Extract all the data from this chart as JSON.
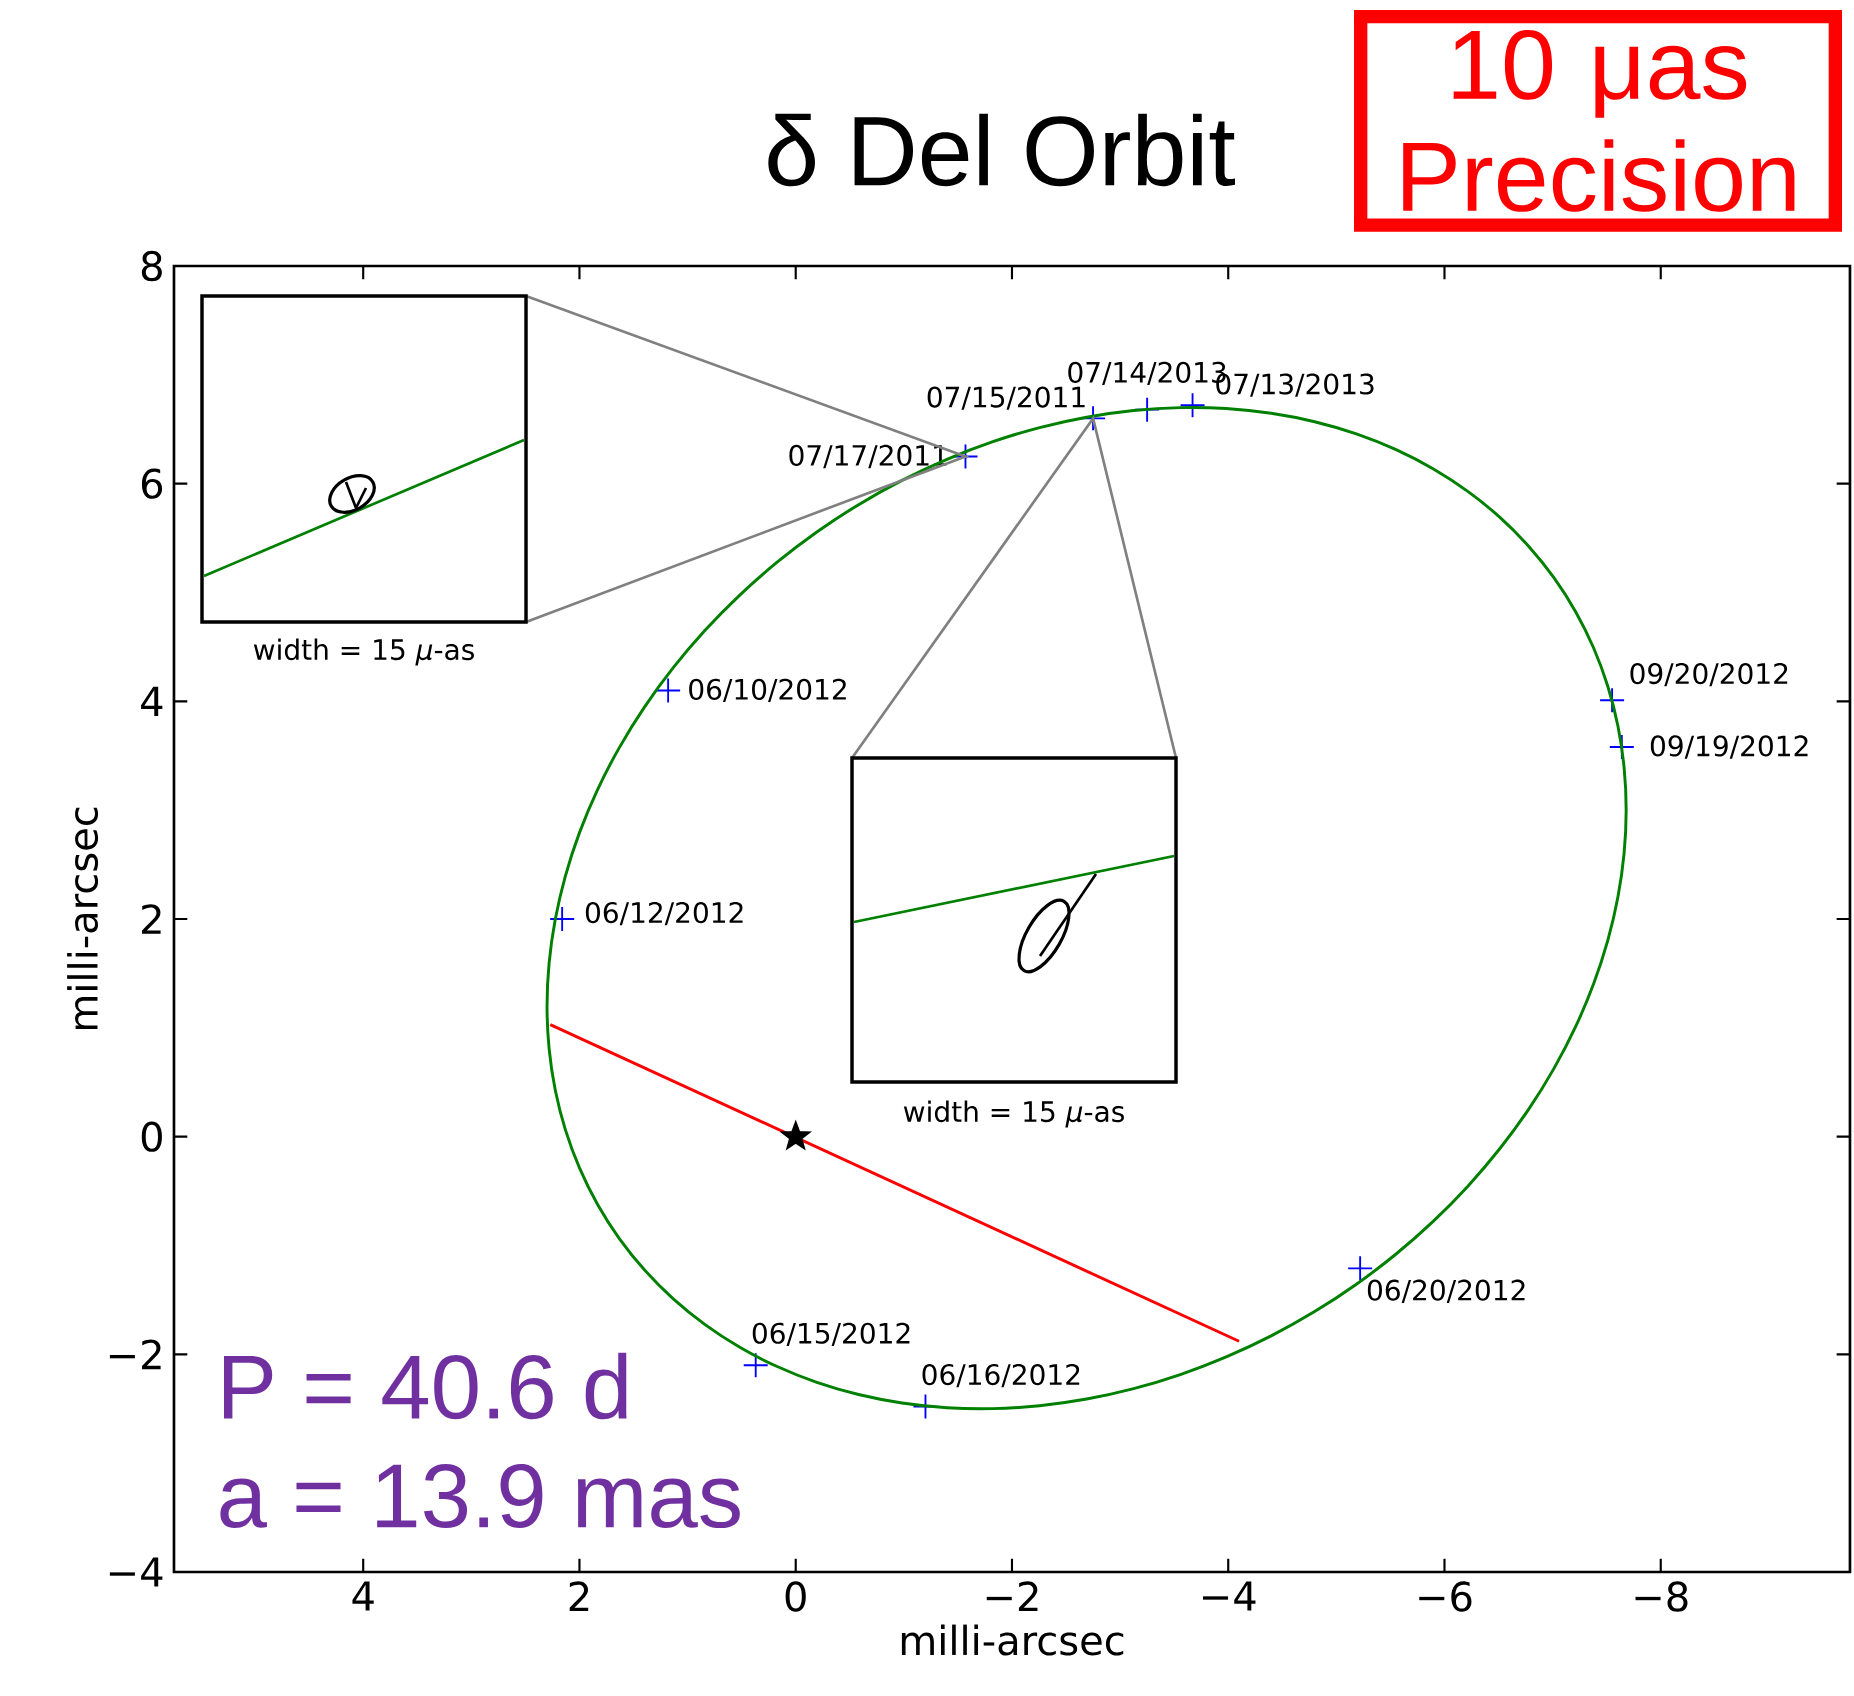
{
  "chart_data": {
    "type": "line",
    "title": "δ Del Orbit",
    "xlabel": "milli-arcsec",
    "ylabel": "milli-arcsec",
    "xlim": [
      5.75,
      -9.75
    ],
    "ylim": [
      -4,
      8
    ],
    "xticks": [
      4,
      2,
      0,
      {
        "value": -2,
        "label": "−2"
      },
      {
        "value": -4,
        "label": "−4"
      },
      {
        "value": -6,
        "label": "−6"
      },
      {
        "value": -8,
        "label": "−8"
      }
    ],
    "yticks": [
      {
        "value": -4,
        "label": "−4"
      },
      {
        "value": -2,
        "label": "−2"
      },
      0,
      2,
      4,
      6,
      8
    ],
    "series": [
      {
        "color": "#ff0000",
        "x": [
          2.27,
          -4.1
        ],
        "values": [
          1.03,
          -1.88
        ]
      },
      {
        "type": "scatter",
        "color": "#0000ff",
        "marker": "cross",
        "x": [
          -1.57,
          -2.75,
          -3.25,
          -3.67,
          1.18,
          2.16,
          0.37,
          -1.2,
          -5.22,
          -7.55,
          -7.64
        ],
        "values": [
          6.25,
          6.6,
          6.68,
          6.72,
          4.1,
          2.0,
          -2.1,
          -2.48,
          -1.21,
          4.01,
          3.58
        ]
      },
      {
        "type": "scatter",
        "color": "#000000",
        "marker": "star",
        "x": [
          0
        ],
        "values": [
          0
        ]
      }
    ],
    "annotations": [
      {
        "text": "07/17/2011",
        "x": -1.57,
        "y": 6.25
      },
      {
        "text": "07/15/2011",
        "x": -2.75,
        "y": 6.6
      },
      {
        "text": "07/14/2013",
        "x": -3.25,
        "y": 6.68
      },
      {
        "text": "07/13/2013",
        "x": -3.67,
        "y": 6.72
      },
      {
        "text": "06/10/2012",
        "x": 1.18,
        "y": 4.1
      },
      {
        "text": "06/12/2012",
        "x": 2.16,
        "y": 2.0
      },
      {
        "text": "06/15/2012",
        "x": 0.37,
        "y": -2.1
      },
      {
        "text": "06/16/2012",
        "x": -1.2,
        "y": -2.48
      },
      {
        "text": "06/20/2012",
        "x": -5.22,
        "y": -1.21
      },
      {
        "text": "09/20/2012",
        "x": -7.55,
        "y": 4.01
      },
      {
        "text": "09/19/2012",
        "x": -7.64,
        "y": 3.58
      },
      "P = 40.6 d",
      "a = 13.9 mas",
      "width = 15 *μ*-as",
      "width = 15 *μ*-as",
      "10 μas Precision"
    ]
  }
}
